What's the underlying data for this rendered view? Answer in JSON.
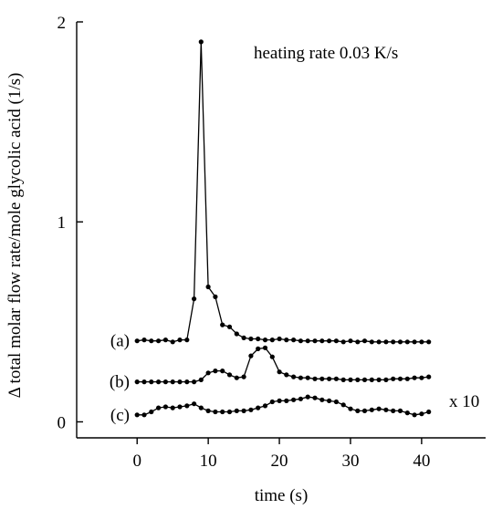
{
  "chart_data": {
    "type": "line",
    "title": "",
    "xlabel": "time (s)",
    "ylabel": "Δ total molar flow rate/mole glycolic acid (1/s)",
    "xlim": [
      -8.5,
      49
    ],
    "ylim": [
      -0.08,
      2.0
    ],
    "x_ticks": [
      0,
      10,
      20,
      30,
      40
    ],
    "x_tick_labels": [
      "0",
      "10",
      "20",
      "30",
      "40"
    ],
    "y_ticks": [
      0,
      1,
      2
    ],
    "y_tick_labels": [
      "0",
      "1",
      "2"
    ],
    "grid": false,
    "legend": "none",
    "annotations": {
      "heating_rate": "heating rate 0.03 K/s",
      "scale_factor": "x 10"
    },
    "series": [
      {
        "name": "(a)",
        "x": [
          0,
          1,
          2,
          3,
          4,
          5,
          6,
          7,
          8,
          9,
          10,
          11,
          12,
          13,
          14,
          15,
          16,
          17,
          18,
          19,
          20,
          21,
          22,
          23,
          24,
          25,
          26,
          27,
          28,
          29,
          30,
          31,
          32,
          33,
          34,
          35,
          36,
          37,
          38,
          39,
          40,
          41
        ],
        "y": [
          0.405,
          0.41,
          0.405,
          0.405,
          0.41,
          0.4,
          0.41,
          0.41,
          0.615,
          1.9,
          0.675,
          0.625,
          0.485,
          0.475,
          0.44,
          0.42,
          0.415,
          0.415,
          0.41,
          0.41,
          0.415,
          0.41,
          0.41,
          0.405,
          0.405,
          0.405,
          0.405,
          0.405,
          0.405,
          0.4,
          0.405,
          0.4,
          0.405,
          0.4,
          0.4,
          0.4,
          0.4,
          0.4,
          0.4,
          0.4,
          0.4,
          0.4
        ]
      },
      {
        "name": "(b)",
        "x": [
          0,
          1,
          2,
          3,
          4,
          5,
          6,
          7,
          8,
          9,
          10,
          11,
          12,
          13,
          14,
          15,
          16,
          17,
          18,
          19,
          20,
          21,
          22,
          23,
          24,
          25,
          26,
          27,
          28,
          29,
          30,
          31,
          32,
          33,
          34,
          35,
          36,
          37,
          38,
          39,
          40,
          41
        ],
        "y": [
          0.2,
          0.2,
          0.2,
          0.2,
          0.2,
          0.2,
          0.2,
          0.2,
          0.2,
          0.21,
          0.245,
          0.255,
          0.255,
          0.235,
          0.22,
          0.225,
          0.33,
          0.365,
          0.37,
          0.325,
          0.25,
          0.235,
          0.225,
          0.22,
          0.22,
          0.215,
          0.215,
          0.215,
          0.215,
          0.21,
          0.21,
          0.21,
          0.21,
          0.21,
          0.21,
          0.21,
          0.215,
          0.215,
          0.215,
          0.22,
          0.22,
          0.225
        ]
      },
      {
        "name": "(c)",
        "x": [
          0,
          1,
          2,
          3,
          4,
          5,
          6,
          7,
          8,
          9,
          10,
          11,
          12,
          13,
          14,
          15,
          16,
          17,
          18,
          19,
          20,
          21,
          22,
          23,
          24,
          25,
          26,
          27,
          28,
          29,
          30,
          31,
          32,
          33,
          34,
          35,
          36,
          37,
          38,
          39,
          40,
          41
        ],
        "y": [
          0.035,
          0.035,
          0.05,
          0.07,
          0.075,
          0.07,
          0.075,
          0.08,
          0.09,
          0.07,
          0.055,
          0.05,
          0.05,
          0.05,
          0.055,
          0.055,
          0.06,
          0.07,
          0.08,
          0.1,
          0.105,
          0.105,
          0.11,
          0.115,
          0.125,
          0.12,
          0.11,
          0.105,
          0.1,
          0.085,
          0.065,
          0.055,
          0.055,
          0.06,
          0.065,
          0.06,
          0.055,
          0.055,
          0.045,
          0.035,
          0.04,
          0.05
        ]
      }
    ]
  }
}
